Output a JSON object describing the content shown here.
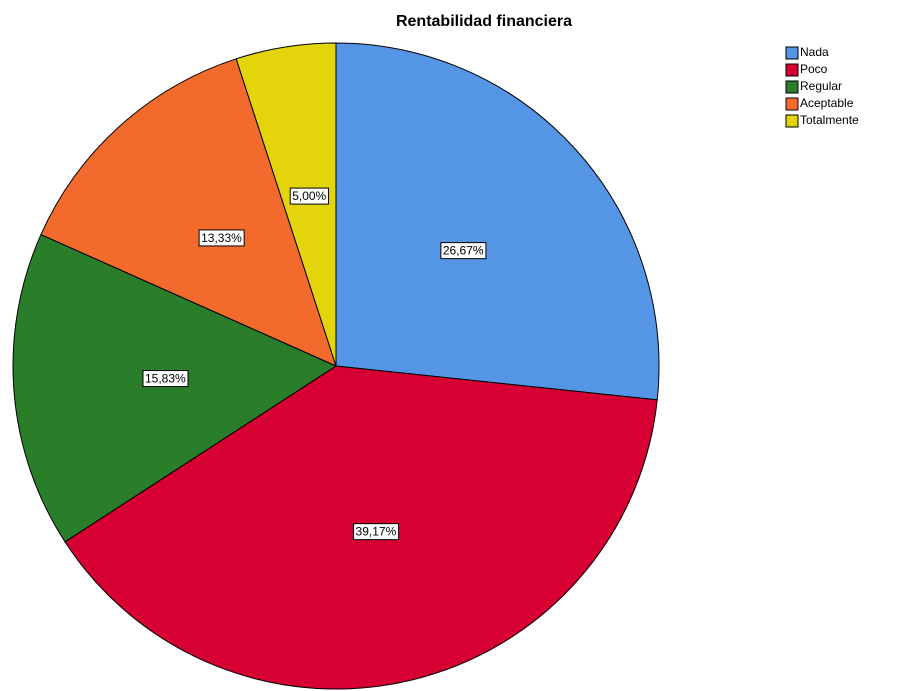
{
  "chart_data": {
    "type": "pie",
    "title": "Rentabilidad financiera",
    "categories": [
      "Nada",
      "Poco",
      "Regular",
      "Aceptable",
      "Totalmente"
    ],
    "values": [
      26.67,
      39.17,
      15.83,
      13.33,
      5.0
    ],
    "value_labels": [
      "26,67%",
      "39,17%",
      "15,83%",
      "13,33%",
      "5,00%"
    ],
    "colors": [
      "#5595e5",
      "#d60032",
      "#2a7e2a",
      "#f26b2c",
      "#e3d40c"
    ],
    "legend": "top-right"
  }
}
